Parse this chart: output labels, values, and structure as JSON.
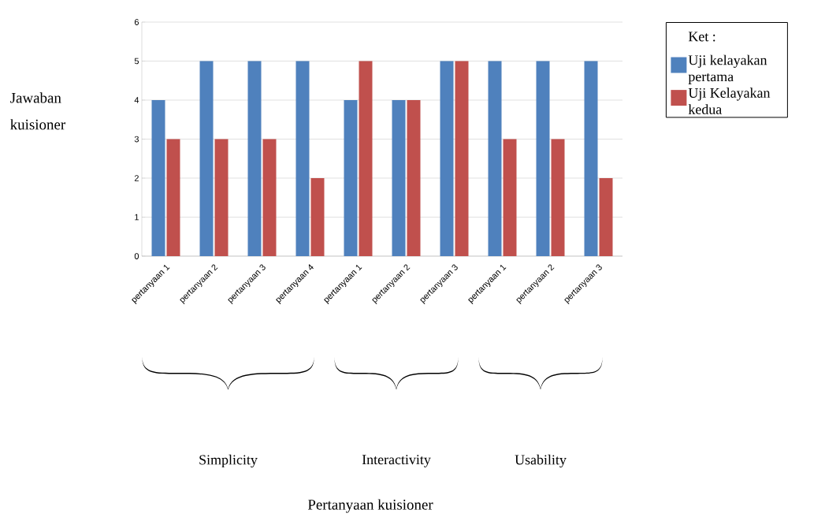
{
  "chart_data": {
    "type": "bar",
    "ylabel": "Jawaban kuisioner",
    "legend_title": "Ket :",
    "categories": [
      "pertanyaan 1",
      "pertanyaan 2",
      "pertanyaan 3",
      "pertanyaan 4",
      "pertanyaan 1",
      "pertanyaan 2",
      "pertanyaan 3",
      "pertanyaan 1",
      "pertanyaan 2",
      "pertanyaan 3"
    ],
    "series": [
      {
        "name": "Uji kelayakan pertama",
        "color": "#4f81bd",
        "values": [
          4,
          5,
          5,
          5,
          4,
          4,
          5,
          5,
          5,
          5
        ]
      },
      {
        "name": "Uji Kelayakan kedua",
        "color": "#c0504d",
        "values": [
          3,
          3,
          3,
          2,
          5,
          4,
          5,
          3,
          3,
          2
        ]
      }
    ],
    "annotations": [
      "Simplicity",
      "Interactivity",
      "Usability",
      "Pertanyaan kuisioner"
    ],
    "ylim": [
      0,
      6
    ],
    "yticks": [
      0,
      1,
      2,
      3,
      4,
      5,
      6
    ],
    "grid": "y",
    "legend": "top right"
  }
}
